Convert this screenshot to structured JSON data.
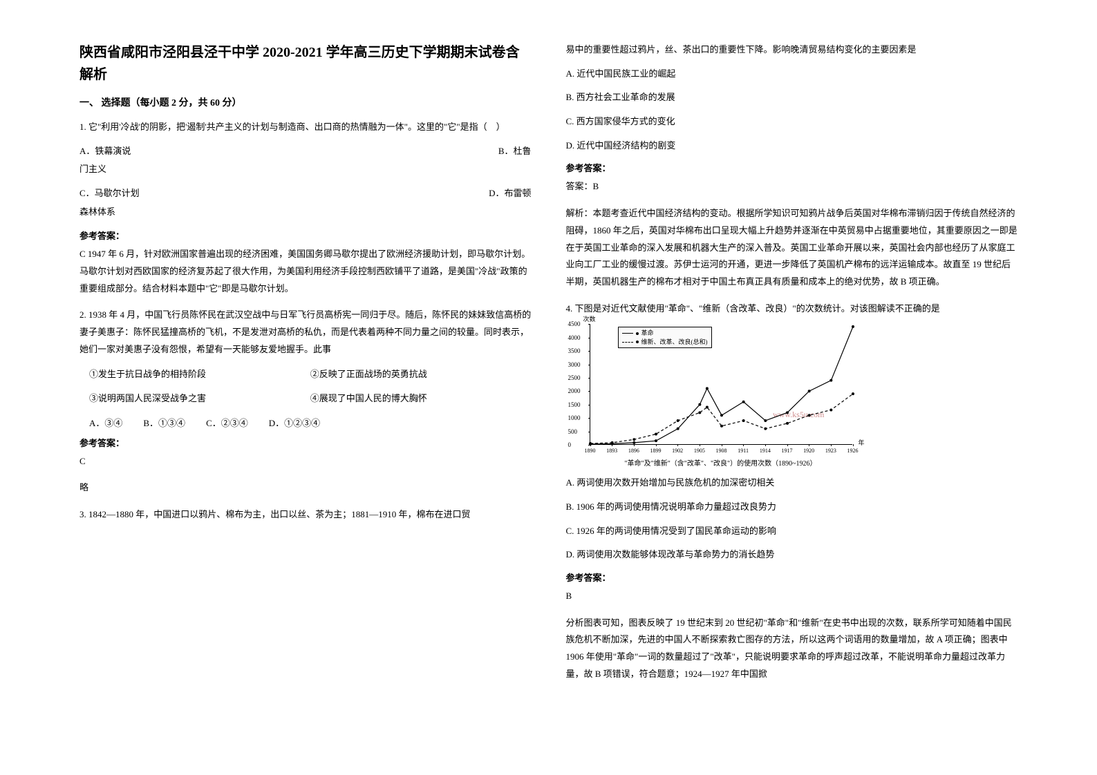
{
  "title": "陕西省咸阳市泾阳县泾干中学 2020-2021 学年高三历史下学期期末试卷含解析",
  "section1": "一、 选择题（每小题 2 分，共 60 分）",
  "q1": {
    "stem": "1. 它\"利用'冷战'的阴影，把'遏制'共产主义的计划与制造商、出口商的热情融为一体\"。这里的\"它\"是指（　）",
    "optA": "A．铁幕演说",
    "optB": "B．杜鲁门主义",
    "optC": "C．马歇尔计划",
    "optD": "D．布雷顿森林体系",
    "ansLabel": "参考答案：",
    "ans": "C  1947 年 6 月，针对欧洲国家普遍出现的经济困难，美国国务卿马歇尔提出了欧洲经济援助计划，即马歇尔计划。马歇尔计划对西欧国家的经济复苏起了很大作用，为美国利用经济手段控制西欧铺平了道路，是美国\"冷战\"政策的重要组成部分。结合材料本题中\"它\"即是马歇尔计划。"
  },
  "q2": {
    "stem": "2. 1938 年 4 月，中国飞行员陈怀民在武汉空战中与日军飞行员高桥宪一同归于尽。随后，陈怀民的妹妹致信高桥的妻子美惠子：陈怀民猛撞高桥的飞机，不是发泄对高桥的私仇，而是代表着两种不同力量之间的较量。同时表示，她们一家对美惠子没有怨恨，希望有一天能够友爱地握手。此事",
    "s1": "①发生于抗日战争的相持阶段",
    "s2": "②反映了正面战场的英勇抗战",
    "s3": "③说明两国人民深受战争之害",
    "s4": "④展现了中国人民的博大胸怀",
    "A": "A．③④",
    "B": "B．①③④",
    "C": "C．②③④",
    "D": "D．①②③④",
    "ansLabel": "参考答案：",
    "ans1": "C",
    "ans2": "略"
  },
  "q3": {
    "stem_left": "3. 1842—1880 年，中国进口以鸦片、棉布为主，出口以丝、茶为主；1881—1910 年，棉布在进口贸",
    "stem_right": "易中的重要性超过鸦片，丝、茶出口的重要性下降。影响晚清贸易结构变化的主要因素是",
    "A": "A. 近代中国民族工业的崛起",
    "B": "B. 西方社会工业革命的发展",
    "C": "C. 西方国家侵华方式的变化",
    "D": "D. 近代中国经济结构的剧变",
    "ansLabel": "参考答案：",
    "ansLine1": "答案：B",
    "ansText": "解析：本题考查近代中国经济结构的变动。根据所学知识可知鸦片战争后英国对华棉布滞销归因于传统自然经济的阻碍，1860 年之后，英国对华棉布出口呈现大幅上升趋势并逐渐在中英贸易中占据重要地位，其重要原因之一即是在于英国工业革命的深入发展和机器大生产的深入普及。英国工业革命开展以来，英国社会内部也经历了从家庭工业向工厂工业的缓慢过渡。苏伊士运河的开通，更进一步降低了英国机产棉布的远洋运输成本。故直至 19 世纪后半期，英国机器生产的棉布才相对于中国土布真正具有质量和成本上的绝对优势，故 B 项正确。"
  },
  "q4": {
    "stem": "4. 下图是对近代文献使用\"革命\"、\"维新（含改革、改良）\"的次数统计。对该图解读不正确的是",
    "chart": {
      "ylabel": "次数",
      "xlabel": "年",
      "legend1": "革命",
      "legend2": "维新、改革、改良(总和)",
      "caption": "\"革命\"及\"维新\"（含\"改革\"、\"改良\"）的使用次数（1890~1926）",
      "yticks": [
        0,
        500,
        1000,
        1500,
        2000,
        2500,
        3000,
        3500,
        4000,
        4500
      ],
      "xticks": [
        1890,
        1893,
        1896,
        1899,
        1902,
        1905,
        1908,
        1911,
        1914,
        1917,
        1920,
        1923,
        1926
      ],
      "ylim": [
        0,
        4500
      ],
      "xlim": [
        1890,
        1926
      ],
      "series1": {
        "color": "#000000",
        "style": "solid",
        "points": [
          [
            1890,
            30
          ],
          [
            1893,
            40
          ],
          [
            1896,
            80
          ],
          [
            1899,
            150
          ],
          [
            1902,
            600
          ],
          [
            1905,
            1500
          ],
          [
            1906,
            2100
          ],
          [
            1908,
            1100
          ],
          [
            1911,
            1600
          ],
          [
            1914,
            900
          ],
          [
            1917,
            1200
          ],
          [
            1920,
            2000
          ],
          [
            1923,
            2400
          ],
          [
            1926,
            4400
          ]
        ]
      },
      "series2": {
        "color": "#000000",
        "style": "dashed",
        "points": [
          [
            1890,
            50
          ],
          [
            1893,
            80
          ],
          [
            1896,
            200
          ],
          [
            1899,
            400
          ],
          [
            1902,
            900
          ],
          [
            1905,
            1200
          ],
          [
            1906,
            1400
          ],
          [
            1908,
            700
          ],
          [
            1911,
            900
          ],
          [
            1914,
            600
          ],
          [
            1917,
            800
          ],
          [
            1920,
            1100
          ],
          [
            1923,
            1300
          ],
          [
            1926,
            1900
          ]
        ]
      },
      "watermark": "www.ks5u.com"
    },
    "A": "A. 两词使用次数开始增加与民族危机的加深密切相关",
    "B": "B. 1906 年的两词使用情况说明革命力量超过改良势力",
    "C": "C.  1926 年的两词使用情况受到了国民革命运动的影响",
    "D": "D. 两词使用次数能够体现改革与革命势力的消长趋势",
    "ansLabel": "参考答案：",
    "ans1": "B",
    "ansText": "分析图表可知，图表反映了 19 世纪末到 20  世纪初\"革命\"和\"维新\"在史书中出现的次数，联系所学可知随着中国民族危机不断加深，先进的中国人不断探索救亡图存的方法，所以这两个词语用的数量增加，故  A 项正确；图表中 1906 年使用\"革命\"一词的数量超过了\"改革\"，只能说明要求革命的呼声超过改革，不能说明革命力量超过改革力量，故  B 项错误，符合题意；1924—1927 年中国掀"
  }
}
